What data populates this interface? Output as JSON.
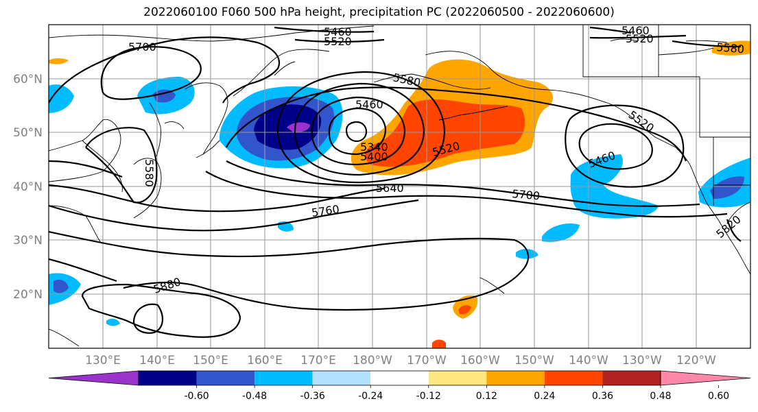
{
  "title": "2022060100 F060 500 hPa height, precipitation PC (2022060500 - 2022060600)",
  "map": {
    "lat_ticks": [
      "60°N",
      "50°N",
      "40°N",
      "30°N",
      "20°N"
    ],
    "lon_ticks": [
      "130°E",
      "140°E",
      "150°E",
      "160°E",
      "170°E",
      "180°W",
      "170°W",
      "160°W",
      "150°W",
      "140°W",
      "130°W",
      "120°W"
    ],
    "contour_labels": [
      "5460",
      "5520",
      "5700",
      "5580",
      "5460",
      "5520",
      "5580",
      "5520",
      "5460",
      "5340",
      "5400",
      "5520",
      "5640",
      "5700",
      "5760",
      "5880",
      "5580",
      "5820"
    ]
  },
  "colorbar": {
    "colors": [
      "#9933cc",
      "#000088",
      "#3355cc",
      "#00bbff",
      "#b3e0ff",
      "#ffffff",
      "#ffe680",
      "#ffa500",
      "#ff4500",
      "#b22222",
      "#ff88aa"
    ],
    "tick_labels": [
      "-0.60",
      "-0.48",
      "-0.36",
      "-0.24",
      "-0.12",
      "0.12",
      "0.24",
      "0.36",
      "0.48",
      "0.60"
    ]
  }
}
